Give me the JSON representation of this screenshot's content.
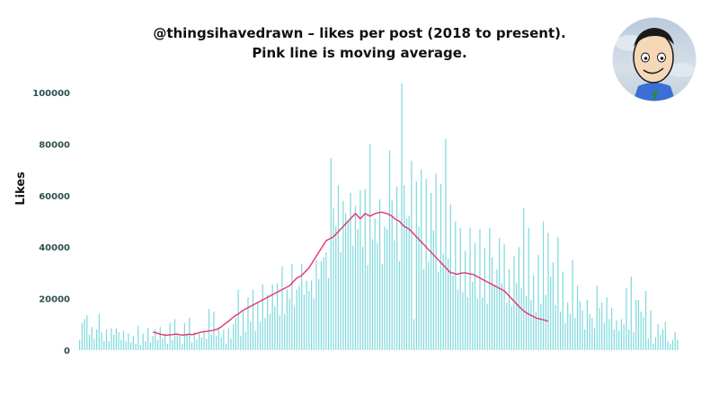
{
  "chart_data": {
    "type": "bar",
    "title": [
      "@thingsihavedrawn – likes per post (2018 to present).",
      "Pink line is moving average."
    ],
    "ylabel": "Likes",
    "xlabel": "",
    "ylim": [
      0,
      105000
    ],
    "yticks": [
      0,
      20000,
      40000,
      60000,
      80000,
      100000
    ],
    "grid": false,
    "legend": "none",
    "colors": {
      "bars": "#7fd9dc",
      "moving_average": "#e8326f",
      "axis_text": "#2f4f4f"
    },
    "series": [
      {
        "kind": "bar",
        "values": [
          4000,
          10500,
          12000,
          13500,
          6000,
          9000,
          4500,
          8000,
          14000,
          7000,
          3500,
          8000,
          3500,
          8500,
          6000,
          8500,
          7000,
          4000,
          7500,
          3500,
          6500,
          3000,
          5500,
          2500,
          9500,
          2000,
          6500,
          3500,
          8500,
          3000,
          5500,
          8000,
          4000,
          9000,
          4500,
          6500,
          2500,
          10500,
          4000,
          12000,
          6500,
          5500,
          2500,
          10500,
          6500,
          12500,
          3000,
          7000,
          4000,
          6500,
          5000,
          7500,
          4500,
          16000,
          6000,
          15000,
          5500,
          8500,
          5000,
          8000,
          2500,
          8500,
          4500,
          10000,
          12500,
          23500,
          5500,
          15000,
          7000,
          20500,
          11000,
          23500,
          7500,
          18500,
          11000,
          25500,
          12500,
          21500,
          14000,
          25500,
          17000,
          26000,
          13500,
          32500,
          14000,
          23500,
          20000,
          33500,
          17000,
          23500,
          25000,
          33500,
          21500,
          27000,
          23000,
          27000,
          20000,
          35000,
          27500,
          34500,
          36000,
          38000,
          28000,
          74500,
          55000,
          48000,
          64000,
          38000,
          58000,
          53000,
          50500,
          61000,
          40500,
          56000,
          47000,
          62000,
          40000,
          62500,
          33000,
          80000,
          43000,
          51000,
          41500,
          58500,
          33500,
          48000,
          47000,
          77500,
          58000,
          42500,
          63500,
          34500,
          103500,
          64000,
          51000,
          52000,
          73500,
          12000,
          65500,
          48000,
          70000,
          31500,
          66500,
          34500,
          61000,
          46500,
          68500,
          30500,
          64500,
          37500,
          82000,
          35500,
          56500,
          29000,
          50000,
          23500,
          47500,
          22500,
          38500,
          20500,
          47500,
          26500,
          41500,
          20000,
          47000,
          20500,
          39500,
          18000,
          47500,
          36000,
          25500,
          31500,
          43500,
          26000,
          41000,
          18500,
          31500,
          17000,
          36500,
          26000,
          40000,
          24000,
          55000,
          21000,
          47500,
          19500,
          29000,
          15000,
          37000,
          18000,
          50000,
          21500,
          45500,
          28500,
          34000,
          17500,
          44000,
          15000,
          30500,
          10500,
          18500,
          14000,
          35000,
          12500,
          25000,
          19000,
          15500,
          8000,
          19500,
          14000,
          12500,
          8500,
          25000,
          16500,
          18500,
          10500,
          20500,
          12000,
          16500,
          8000,
          11500,
          7500,
          12000,
          10000,
          24000,
          8000,
          28500,
          7000,
          19500,
          19500,
          15000,
          13000,
          23000,
          4500,
          15500,
          2500,
          5000,
          10000,
          6000,
          8000,
          11000,
          3500,
          2500,
          4000,
          7000,
          4000
        ]
      },
      {
        "kind": "line",
        "name": "moving average",
        "start_index": 30,
        "values": [
          7000,
          6800,
          6500,
          6200,
          6000,
          5800,
          5800,
          6000,
          6000,
          6200,
          6200,
          6000,
          5800,
          6000,
          6000,
          6200,
          6000,
          6200,
          6500,
          6800,
          7000,
          7200,
          7200,
          7500,
          7500,
          7800,
          8000,
          8500,
          9000,
          9800,
          10500,
          11200,
          12000,
          12800,
          13500,
          14000,
          14800,
          15500,
          16000,
          16500,
          17000,
          17500,
          18000,
          18500,
          19000,
          19500,
          20000,
          20500,
          21000,
          21500,
          22000,
          22500,
          23000,
          23500,
          24000,
          24500,
          25000,
          26000,
          27000,
          28000,
          28500,
          29000,
          30000,
          31000,
          32000,
          33500,
          35000,
          36500,
          38000,
          39500,
          41000,
          42500,
          43000,
          43500,
          44000,
          45000,
          46000,
          47000,
          48000,
          49000,
          50000,
          51000,
          52000,
          53000,
          52000,
          51000,
          52000,
          53000,
          52500,
          52000,
          52500,
          53000,
          53200,
          53500,
          53500,
          53200,
          53000,
          52500,
          52000,
          51000,
          50500,
          50000,
          49000,
          48000,
          47500,
          47000,
          46000,
          45000,
          44000,
          43000,
          42000,
          41000,
          40000,
          39000,
          38000,
          37000,
          36000,
          35000,
          34000,
          33000,
          32000,
          31000,
          30000,
          30000,
          29500,
          29500,
          29800,
          30000,
          30000,
          29800,
          29500,
          29500,
          29000,
          28500,
          28000,
          27500,
          27000,
          26500,
          26000,
          25500,
          25000,
          24500,
          24000,
          23500,
          23000,
          22000,
          21000,
          20000,
          19000,
          18000,
          17000,
          16000,
          15200,
          14500,
          14000,
          13500,
          13000,
          12500,
          12200,
          12000,
          11800,
          11500,
          11200
        ]
      }
    ]
  }
}
